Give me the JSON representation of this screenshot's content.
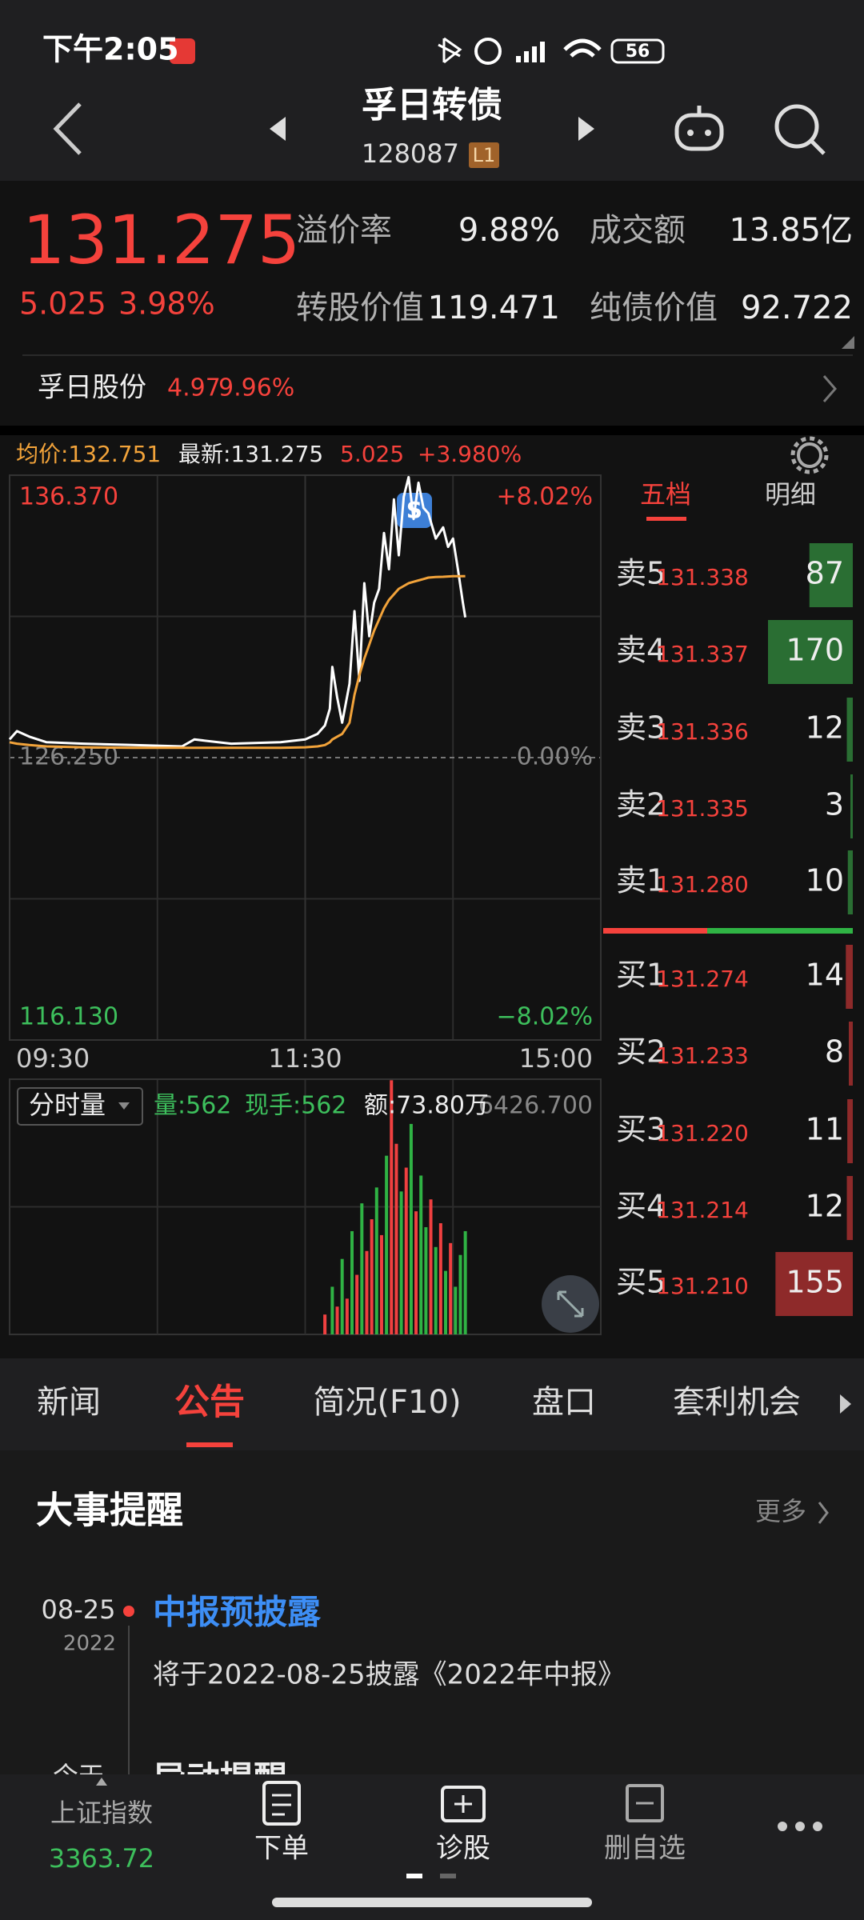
{
  "status_bar": {
    "time": "下午2:05",
    "battery": "56"
  },
  "header": {
    "title": "孚日转债",
    "code": "128087",
    "level": "L1"
  },
  "quote": {
    "price": "131.275",
    "change": "5.025",
    "change_pct": "3.98%",
    "stats": [
      {
        "label": "溢价率",
        "value": "9.88%"
      },
      {
        "label": "成交额",
        "value": "13.85亿"
      },
      {
        "label": "转股价值",
        "value": "119.471"
      },
      {
        "label": "纯债价值",
        "value": "92.722"
      }
    ]
  },
  "underlying": {
    "name": "孚日股份",
    "price": "4.97",
    "change_pct": "9.96%"
  },
  "chart_header": {
    "avg": "均价:132.751",
    "last": "最新:131.275",
    "change": "5.025",
    "change_pct": "+3.980%"
  },
  "chart_data": [
    {
      "type": "line",
      "x": [
        0,
        3,
        8,
        15,
        30,
        50,
        70,
        75,
        90,
        110,
        120,
        125,
        128,
        130,
        131,
        133,
        135,
        138,
        140,
        142,
        144,
        146,
        148,
        150,
        152,
        154,
        156,
        158,
        160,
        162,
        164,
        166,
        168,
        170,
        173,
        176,
        178,
        180,
        182,
        184,
        185
      ],
      "series": [
        {
          "color": "#ffffff",
          "values": [
            126.9,
            127.2,
            127.0,
            126.8,
            126.75,
            126.7,
            126.65,
            126.9,
            126.75,
            126.8,
            126.9,
            127.1,
            127.4,
            128.0,
            129.5,
            128.4,
            127.5,
            128.9,
            131.5,
            129.0,
            132.5,
            130.6,
            131.8,
            132.3,
            134.3,
            133.0,
            135.5,
            133.5,
            135.6,
            136.3,
            134.8,
            136.1,
            135.2,
            135.0,
            134.1,
            134.5,
            133.8,
            134.1,
            133.0,
            131.8,
            131.275
          ]
        },
        {
          "color": "#f2a33a",
          "values": [
            126.8,
            126.75,
            126.7,
            126.65,
            126.62,
            126.6,
            126.6,
            126.6,
            126.6,
            126.6,
            126.62,
            126.65,
            126.7,
            126.8,
            126.9,
            127.0,
            127.1,
            127.5,
            128.5,
            129.2,
            129.8,
            130.3,
            130.8,
            131.2,
            131.6,
            131.9,
            132.1,
            132.3,
            132.4,
            132.5,
            132.55,
            132.6,
            132.65,
            132.7,
            132.72,
            132.73,
            132.74,
            132.75,
            132.75,
            132.75,
            132.751
          ]
        }
      ],
      "xlim": [
        0,
        240
      ],
      "xticks": [
        {
          "value": 0,
          "label": "09:30"
        },
        {
          "value": 120,
          "label": "11:30"
        },
        {
          "value": 240,
          "label": "15:00"
        }
      ],
      "ylim": [
        116.13,
        136.37
      ],
      "yticks": [
        {
          "value": 116.13,
          "label": "116.130"
        },
        {
          "value": 126.25,
          "label": "126.250"
        },
        {
          "value": 136.37,
          "label": "136.370"
        }
      ],
      "y2lim": [
        -8.02,
        8.02
      ],
      "y2ticks": [
        {
          "value": -8.02,
          "label": "−8.02%"
        },
        {
          "value": 0,
          "label": "0.00%"
        },
        {
          "value": 8.02,
          "label": "+8.02%"
        }
      ],
      "marker_label": "S"
    },
    {
      "type": "bar",
      "label": "分时量",
      "stats": [
        "量:562",
        "现手:562",
        "额:73.80万"
      ],
      "x": [
        128,
        131,
        133,
        135,
        137,
        139,
        141,
        143,
        145,
        147,
        149,
        151,
        153,
        155,
        157,
        159,
        161,
        163,
        165,
        167,
        169,
        171,
        173,
        175,
        177,
        179,
        181,
        183,
        185
      ],
      "values": [
        500,
        1200,
        700,
        1900,
        900,
        2600,
        1500,
        3300,
        2100,
        2900,
        3700,
        2500,
        4500,
        6400,
        4800,
        3600,
        4200,
        5300,
        3100,
        4000,
        2700,
        3400,
        2200,
        2800,
        1600,
        2300,
        1200,
        2000,
        2600
      ],
      "colors": [
        "#f04040",
        "#2fb344",
        "#f04040",
        "#2fb344",
        "#f04040",
        "#2fb344",
        "#f04040",
        "#2fb344",
        "#f04040",
        "#f04040",
        "#2fb344",
        "#f04040",
        "#2fb344",
        "#f04040",
        "#f04040",
        "#2fb344",
        "#f04040",
        "#2fb344",
        "#f04040",
        "#2fb344",
        "#2fb344",
        "#f04040",
        "#2fb344",
        "#f04040",
        "#2fb344",
        "#f04040",
        "#2fb344",
        "#2fb344",
        "#2fb344"
      ],
      "xlim": [
        0,
        240
      ],
      "ylim": [
        0,
        6426.7
      ],
      "yticks": [
        {
          "value": 6426.7,
          "label": "6426.700"
        }
      ]
    }
  ],
  "order_book": {
    "tabs": [
      "五档",
      "明细"
    ],
    "asks": [
      {
        "label": "卖5",
        "price": "131.338",
        "volume": 87
      },
      {
        "label": "卖4",
        "price": "131.337",
        "volume": 170
      },
      {
        "label": "卖3",
        "price": "131.336",
        "volume": 12
      },
      {
        "label": "卖2",
        "price": "131.335",
        "volume": 3
      },
      {
        "label": "卖1",
        "price": "131.280",
        "volume": 10
      }
    ],
    "bids": [
      {
        "label": "买1",
        "price": "131.274",
        "volume": 14
      },
      {
        "label": "买2",
        "price": "131.233",
        "volume": 8
      },
      {
        "label": "买3",
        "price": "131.220",
        "volume": 11
      },
      {
        "label": "买4",
        "price": "131.214",
        "volume": 12
      },
      {
        "label": "买5",
        "price": "131.210",
        "volume": 155
      }
    ]
  },
  "tabs": {
    "items": [
      "新闻",
      "公告",
      "简况(F10)",
      "盘口",
      "套利机会"
    ],
    "active": 1
  },
  "events": {
    "title": "大事提醒",
    "more": "更多",
    "items": [
      {
        "date": "08-25",
        "year": "2022",
        "title": "中报预披露",
        "desc": "将于2022-08-25披露《2022年中报》"
      },
      {
        "date": "今天",
        "title": "异动提醒"
      }
    ]
  },
  "bottom_nav": {
    "index_name": "上证指数",
    "index_value": "3363.72",
    "items": [
      "下单",
      "诊股",
      "删自选"
    ]
  }
}
